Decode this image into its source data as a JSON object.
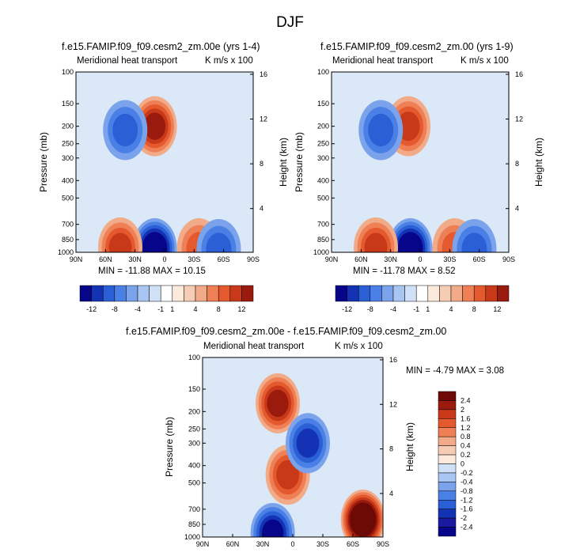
{
  "main_title": "DJF",
  "colors": {
    "palette_neg": [
      "#07068a",
      "#1433b4",
      "#2a5fd6",
      "#4a80e6",
      "#7aa3ec",
      "#a9c5f2",
      "#cfe0f7"
    ],
    "palette_pos": [
      "#fbe9dc",
      "#f6cdb4",
      "#f2ab88",
      "#ef7f54",
      "#e45a2e",
      "#c8391a",
      "#9a1a0e",
      "#6e0a06"
    ],
    "panel_bg": "#dbe8f8"
  },
  "chart_data": [
    {
      "id": "panel1",
      "type": "heatmap",
      "title": "f.e15.FAMIP.f09_f09.cesm2_zm.00e (yrs 1-4)",
      "left_label": "Meridional heat transport",
      "right_label": "K m/s x 100",
      "ylabel": "Pressure (mb)",
      "ylabel_right": "Height (km)",
      "x_ticks": [
        "90N",
        "60N",
        "30N",
        "0",
        "30S",
        "60S",
        "90S"
      ],
      "y_ticks": [
        "100",
        "150",
        "200",
        "250",
        "300",
        "400",
        "500",
        "700",
        "850",
        "1000"
      ],
      "height_ticks": [
        "16",
        "12",
        "8",
        "4"
      ],
      "min_max": "MIN = -11.88   MAX = 10.15",
      "features": [
        {
          "lat": 10,
          "p": 200,
          "v": 9
        },
        {
          "lat": 40,
          "p": 210,
          "v": -5
        },
        {
          "lat": 10,
          "p": 950,
          "v": -11.88
        },
        {
          "lat": 45,
          "p": 940,
          "v": 8
        },
        {
          "lat": -35,
          "p": 950,
          "v": 6
        },
        {
          "lat": -55,
          "p": 960,
          "v": -6
        }
      ]
    },
    {
      "id": "panel2",
      "type": "heatmap",
      "title": "f.e15.FAMIP.f09_f09.cesm2_zm.00 (yrs 1-9)",
      "left_label": "Meridional heat transport",
      "right_label": "K m/s x 100",
      "ylabel": "Pressure (mb)",
      "ylabel_right": "Height (km)",
      "x_ticks": [
        "90N",
        "60N",
        "30N",
        "0",
        "30S",
        "60S",
        "90S"
      ],
      "y_ticks": [
        "100",
        "150",
        "200",
        "250",
        "300",
        "400",
        "500",
        "700",
        "850",
        "1000"
      ],
      "height_ticks": [
        "16",
        "12",
        "8",
        "4"
      ],
      "min_max": "MIN = -11.78   MAX =   8.52",
      "features": [
        {
          "lat": 12,
          "p": 200,
          "v": 8.5
        },
        {
          "lat": 40,
          "p": 210,
          "v": -5
        },
        {
          "lat": 10,
          "p": 950,
          "v": -11.78
        },
        {
          "lat": 45,
          "p": 940,
          "v": 7
        },
        {
          "lat": -35,
          "p": 950,
          "v": 6
        },
        {
          "lat": -55,
          "p": 960,
          "v": -6
        }
      ]
    },
    {
      "id": "panel3",
      "type": "heatmap",
      "title": "f.e15.FAMIP.f09_f09.cesm2_zm.00e - f.e15.FAMIP.f09_f09.cesm2_zm.00",
      "left_label": "Meridional heat transport",
      "right_label": "K m/s x 100",
      "ylabel": "Pressure (mb)",
      "ylabel_right": "Height (km)",
      "x_ticks": [
        "90N",
        "60N",
        "30N",
        "0",
        "30S",
        "60S",
        "90S"
      ],
      "y_ticks": [
        "100",
        "150",
        "200",
        "250",
        "300",
        "400",
        "500",
        "700",
        "850",
        "1000"
      ],
      "height_ticks": [
        "16",
        "12",
        "8",
        "4"
      ],
      "min_max": "MIN =  -4.79   MAX =   3.08",
      "features": [
        {
          "lat": 15,
          "p": 180,
          "v": 2
        },
        {
          "lat": 5,
          "p": 450,
          "v": 1.5
        },
        {
          "lat": -15,
          "p": 300,
          "v": -1.5
        },
        {
          "lat": 20,
          "p": 950,
          "v": -2
        },
        {
          "lat": -70,
          "p": 800,
          "v": 3.08
        }
      ]
    }
  ],
  "colorbar_top": {
    "labels": [
      "-12",
      "-8",
      "-4",
      "-1",
      "1",
      "4",
      "8",
      "12"
    ]
  },
  "colorbar_diff": {
    "labels": [
      "2.4",
      "2",
      "1.6",
      "1.2",
      "0.8",
      "0.4",
      "0.2",
      "0",
      "-0.2",
      "-0.4",
      "-0.8",
      "-1.2",
      "-1.6",
      "-2",
      "-2.4"
    ]
  }
}
